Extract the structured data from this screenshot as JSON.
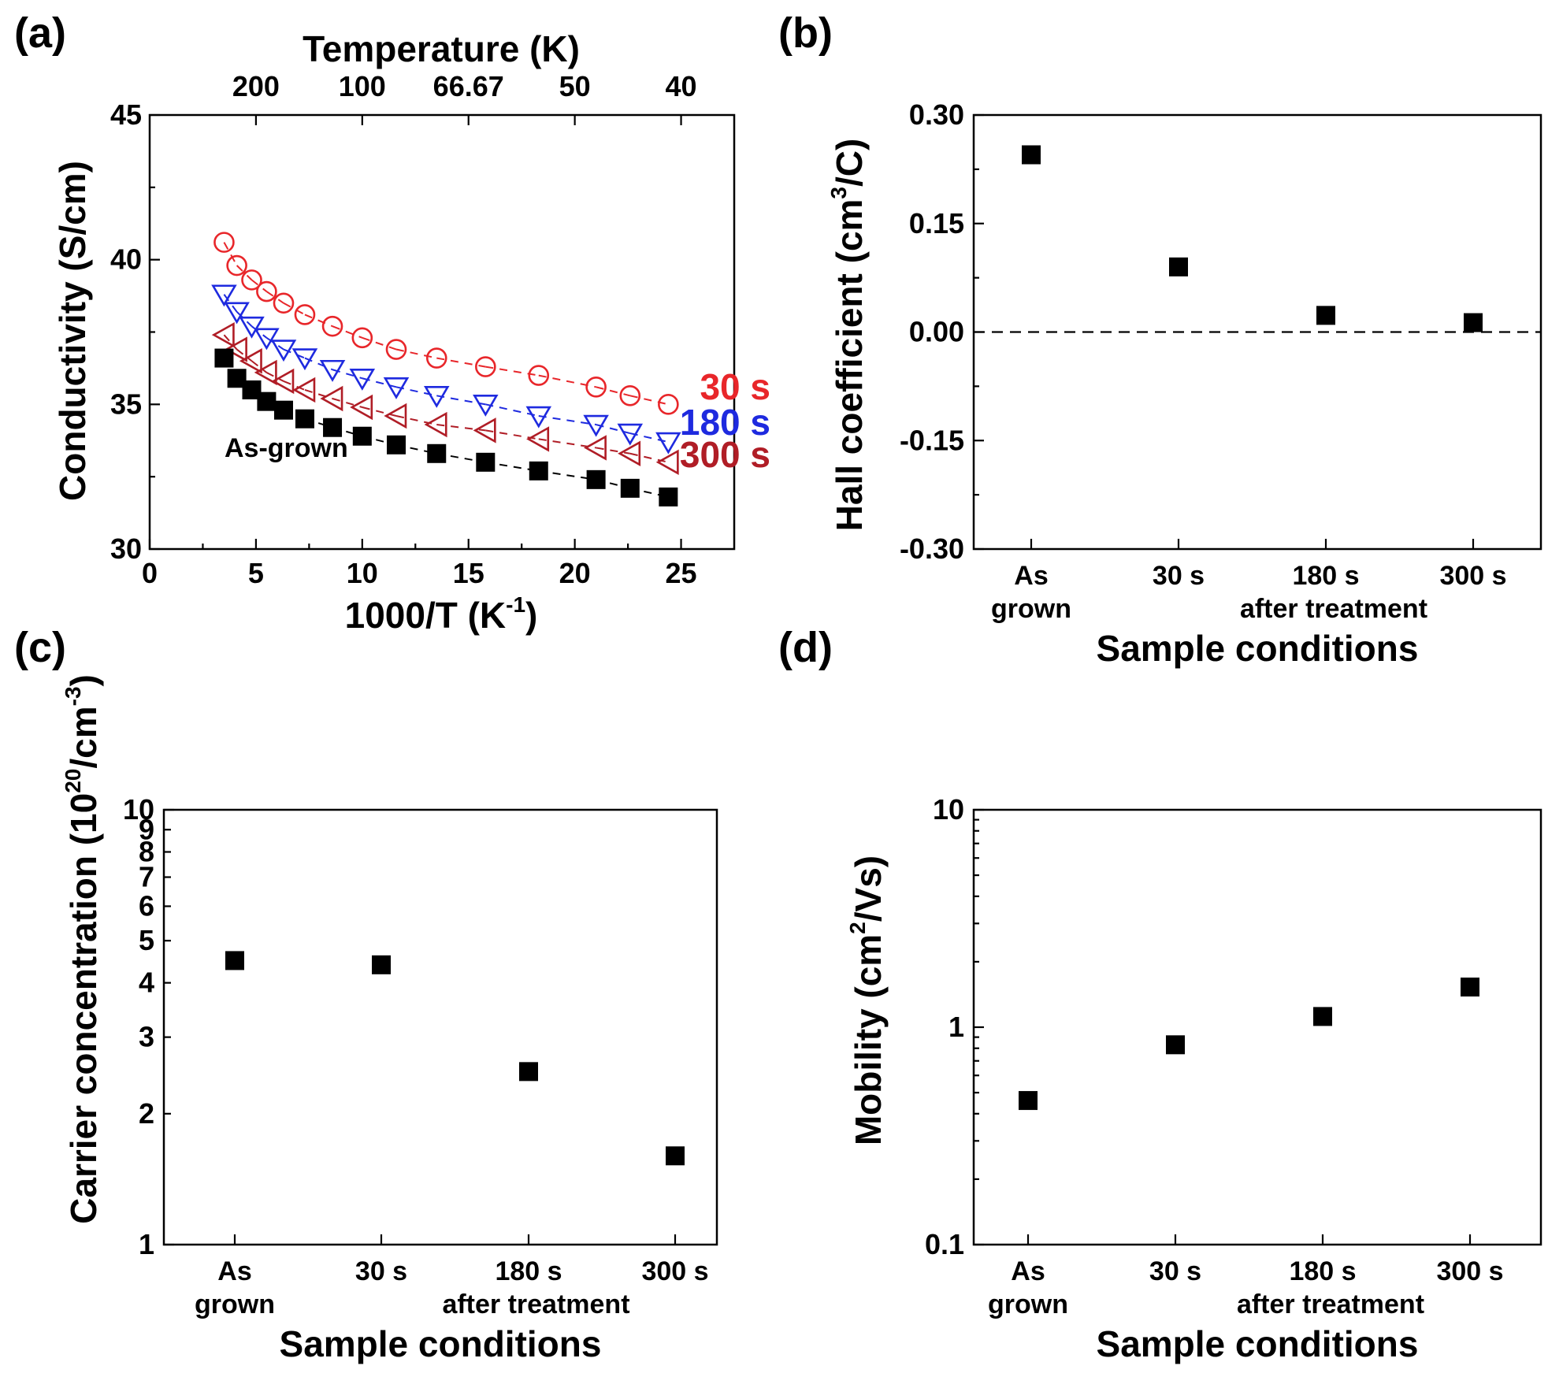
{
  "chart_data": [
    {
      "panel": "(a)",
      "type": "scatter",
      "title": "",
      "xlabel_main": "1000/T (K",
      "xlabel_sup": "-1",
      "xlabel_end": ")",
      "ylabel": "Conductivity (S/cm)",
      "top_axis_label": "Temperature (K)",
      "top_ticks": [
        {
          "x": 5,
          "label": "200"
        },
        {
          "x": 10,
          "label": "100"
        },
        {
          "x": 15,
          "label": "66.67"
        },
        {
          "x": 20,
          "label": "50"
        },
        {
          "x": 25,
          "label": "40"
        }
      ],
      "xlim": [
        0,
        27.5
      ],
      "ylim": [
        30,
        45
      ],
      "xticks": [
        0,
        5,
        10,
        15,
        20,
        25
      ],
      "yticks": [
        30,
        35,
        40,
        45
      ],
      "annotation": "As-grown",
      "series": [
        {
          "name": "30 s",
          "color": "#e8262a",
          "marker": "circle",
          "x": [
            3.5,
            4.1,
            4.8,
            5.5,
            6.3,
            7.3,
            8.6,
            10.0,
            11.6,
            13.5,
            15.8,
            18.3,
            21.0,
            22.6,
            24.4
          ],
          "y": [
            40.6,
            39.8,
            39.3,
            38.9,
            38.5,
            38.1,
            37.7,
            37.3,
            36.9,
            36.6,
            36.3,
            36.0,
            35.6,
            35.3,
            35.0
          ]
        },
        {
          "name": "180 s",
          "color": "#1e2adf",
          "marker": "triangle-down",
          "x": [
            3.5,
            4.1,
            4.8,
            5.5,
            6.3,
            7.3,
            8.6,
            10.0,
            11.6,
            13.5,
            15.8,
            18.3,
            21.0,
            22.6,
            24.4
          ],
          "y": [
            38.8,
            38.2,
            37.7,
            37.3,
            36.9,
            36.6,
            36.2,
            35.9,
            35.6,
            35.3,
            35.0,
            34.6,
            34.3,
            34.0,
            33.7
          ]
        },
        {
          "name": "300 s",
          "color": "#b01d26",
          "marker": "triangle-left",
          "x": [
            3.5,
            4.1,
            4.8,
            5.5,
            6.3,
            7.3,
            8.6,
            10.0,
            11.6,
            13.5,
            15.8,
            18.3,
            21.0,
            22.6,
            24.4
          ],
          "y": [
            37.4,
            36.9,
            36.5,
            36.1,
            35.8,
            35.5,
            35.2,
            34.9,
            34.6,
            34.3,
            34.1,
            33.8,
            33.5,
            33.3,
            33.0
          ]
        },
        {
          "name": "As-grown",
          "color": "#000000",
          "marker": "square",
          "x": [
            3.5,
            4.1,
            4.8,
            5.5,
            6.3,
            7.3,
            8.6,
            10.0,
            11.6,
            13.5,
            15.8,
            18.3,
            21.0,
            22.6,
            24.4
          ],
          "y": [
            36.6,
            35.9,
            35.5,
            35.1,
            34.8,
            34.5,
            34.2,
            33.9,
            33.6,
            33.3,
            33.0,
            32.7,
            32.4,
            32.1,
            31.8
          ]
        }
      ]
    },
    {
      "panel": "(b)",
      "type": "scatter",
      "xlabel": "Sample conditions",
      "ylabel_main": "Hall coefficient (cm",
      "ylabel_sup": "3",
      "ylabel_end": "/C)",
      "categories": [
        [
          "As",
          "grown"
        ],
        [
          "30 s"
        ],
        [
          "180 s"
        ],
        [
          "300 s"
        ]
      ],
      "group_label": "after treatment",
      "values": [
        0.245,
        0.09,
        0.023,
        0.013
      ],
      "ylim": [
        -0.3,
        0.3
      ],
      "yticks": [
        "0.30",
        "0.15",
        "0.00",
        "-0.15",
        "-0.30"
      ],
      "reference_line": 0
    },
    {
      "panel": "(c)",
      "type": "scatter",
      "yscale": "log",
      "xlabel": "Sample conditions",
      "ylabel_main": "Carrier concentration (10",
      "ylabel_sup1": "20",
      "ylabel_mid": "/cm",
      "ylabel_sup2": "-3",
      "ylabel_end": ")",
      "categories": [
        [
          "As",
          "grown"
        ],
        [
          "30 s"
        ],
        [
          "180 s"
        ],
        [
          "300 s"
        ]
      ],
      "group_label": "after treatment",
      "values": [
        4.5,
        4.4,
        2.5,
        1.6
      ],
      "ylim": [
        1,
        10
      ],
      "yticks": [
        "1",
        "2",
        "3",
        "4",
        "5",
        "6",
        "7",
        "8",
        "9",
        "10"
      ]
    },
    {
      "panel": "(d)",
      "type": "scatter",
      "yscale": "log",
      "xlabel": "Sample conditions",
      "ylabel_main": "Mobility (cm",
      "ylabel_sup": "2",
      "ylabel_end": "/Vs)",
      "categories": [
        [
          "As",
          "grown"
        ],
        [
          "30 s"
        ],
        [
          "180 s"
        ],
        [
          "300 s"
        ]
      ],
      "group_label": "after treatment",
      "values": [
        0.46,
        0.83,
        1.12,
        1.53
      ],
      "ylim": [
        0.1,
        10
      ],
      "yticks": [
        "0.1",
        "1",
        "10"
      ]
    }
  ]
}
